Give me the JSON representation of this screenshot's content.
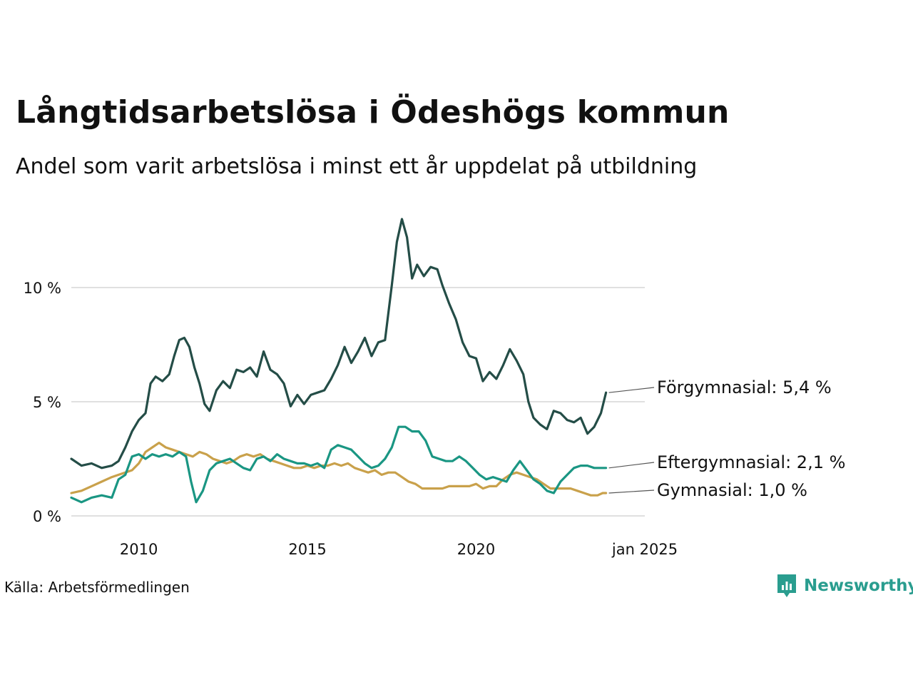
{
  "title": "Långtidsarbetslösa i Ödeshögs kommun",
  "subtitle": "Andel som varit arbetslösa i minst ett år uppdelat på utbildning",
  "source": "Källa: Arbetsförmedlingen",
  "brand": "Newsworthy",
  "colors": {
    "forgym": "#244d47",
    "eftergym": "#1a9683",
    "gym": "#c9a14b",
    "grid": "#e0e0e0",
    "brand": "#2a9d8f"
  },
  "chart_data": {
    "type": "line",
    "title": "Långtidsarbetslösa i Ödeshögs kommun",
    "subtitle": "Andel som varit arbetslösa i minst ett år uppdelat på utbildning",
    "xlabel": "",
    "ylabel": "",
    "xlim": [
      2008.0,
      2025.0
    ],
    "ylim": [
      0,
      13.5
    ],
    "grid": true,
    "x_ticks": [
      {
        "value": 2010,
        "label": "2010"
      },
      {
        "value": 2015,
        "label": "2015"
      },
      {
        "value": 2020,
        "label": "2020"
      },
      {
        "value": 2025,
        "label": "jan 2025"
      }
    ],
    "y_ticks": [
      {
        "value": 0,
        "label": "0 %"
      },
      {
        "value": 5,
        "label": "5 %"
      },
      {
        "value": 10,
        "label": "10 %"
      }
    ],
    "series": [
      {
        "name": "Förgymnasial",
        "key": "forgym",
        "end_label": "Förgymnasial: 5,4 %",
        "points": [
          [
            2008.0,
            2.5
          ],
          [
            2008.3,
            2.2
          ],
          [
            2008.6,
            2.3
          ],
          [
            2008.9,
            2.1
          ],
          [
            2009.2,
            2.2
          ],
          [
            2009.4,
            2.4
          ],
          [
            2009.6,
            3.0
          ],
          [
            2009.8,
            3.7
          ],
          [
            2010.0,
            4.2
          ],
          [
            2010.2,
            4.5
          ],
          [
            2010.35,
            5.8
          ],
          [
            2010.5,
            6.1
          ],
          [
            2010.7,
            5.9
          ],
          [
            2010.9,
            6.2
          ],
          [
            2011.05,
            7.0
          ],
          [
            2011.2,
            7.7
          ],
          [
            2011.35,
            7.8
          ],
          [
            2011.5,
            7.4
          ],
          [
            2011.65,
            6.5
          ],
          [
            2011.8,
            5.8
          ],
          [
            2011.95,
            4.9
          ],
          [
            2012.1,
            4.6
          ],
          [
            2012.3,
            5.5
          ],
          [
            2012.5,
            5.9
          ],
          [
            2012.7,
            5.6
          ],
          [
            2012.9,
            6.4
          ],
          [
            2013.1,
            6.3
          ],
          [
            2013.3,
            6.5
          ],
          [
            2013.5,
            6.1
          ],
          [
            2013.7,
            7.2
          ],
          [
            2013.9,
            6.4
          ],
          [
            2014.1,
            6.2
          ],
          [
            2014.3,
            5.8
          ],
          [
            2014.5,
            4.8
          ],
          [
            2014.7,
            5.3
          ],
          [
            2014.9,
            4.9
          ],
          [
            2015.1,
            5.3
          ],
          [
            2015.3,
            5.4
          ],
          [
            2015.5,
            5.5
          ],
          [
            2015.7,
            6.0
          ],
          [
            2015.9,
            6.6
          ],
          [
            2016.1,
            7.4
          ],
          [
            2016.3,
            6.7
          ],
          [
            2016.5,
            7.2
          ],
          [
            2016.7,
            7.8
          ],
          [
            2016.9,
            7.0
          ],
          [
            2017.1,
            7.6
          ],
          [
            2017.3,
            7.7
          ],
          [
            2017.5,
            10.1
          ],
          [
            2017.65,
            12.0
          ],
          [
            2017.8,
            13.0
          ],
          [
            2017.95,
            12.2
          ],
          [
            2018.1,
            10.4
          ],
          [
            2018.25,
            11.0
          ],
          [
            2018.45,
            10.5
          ],
          [
            2018.65,
            10.9
          ],
          [
            2018.85,
            10.8
          ],
          [
            2019.0,
            10.1
          ],
          [
            2019.2,
            9.3
          ],
          [
            2019.4,
            8.6
          ],
          [
            2019.6,
            7.6
          ],
          [
            2019.8,
            7.0
          ],
          [
            2020.0,
            6.9
          ],
          [
            2020.2,
            5.9
          ],
          [
            2020.4,
            6.3
          ],
          [
            2020.6,
            6.0
          ],
          [
            2020.8,
            6.6
          ],
          [
            2021.0,
            7.3
          ],
          [
            2021.2,
            6.8
          ],
          [
            2021.4,
            6.2
          ],
          [
            2021.55,
            5.0
          ],
          [
            2021.7,
            4.3
          ],
          [
            2021.9,
            4.0
          ],
          [
            2022.1,
            3.8
          ],
          [
            2022.3,
            4.6
          ],
          [
            2022.5,
            4.5
          ],
          [
            2022.7,
            4.2
          ],
          [
            2022.9,
            4.1
          ],
          [
            2023.1,
            4.3
          ],
          [
            2023.3,
            3.6
          ],
          [
            2023.5,
            3.9
          ],
          [
            2023.7,
            4.5
          ],
          [
            2023.85,
            5.4
          ]
        ]
      },
      {
        "name": "Eftergymnasial",
        "key": "eftergym",
        "end_label": "Eftergymnasial: 2,1 %",
        "points": [
          [
            2008.0,
            0.8
          ],
          [
            2008.3,
            0.6
          ],
          [
            2008.6,
            0.8
          ],
          [
            2008.9,
            0.9
          ],
          [
            2009.2,
            0.8
          ],
          [
            2009.4,
            1.6
          ],
          [
            2009.6,
            1.8
          ],
          [
            2009.8,
            2.6
          ],
          [
            2010.0,
            2.7
          ],
          [
            2010.2,
            2.5
          ],
          [
            2010.4,
            2.7
          ],
          [
            2010.6,
            2.6
          ],
          [
            2010.8,
            2.7
          ],
          [
            2011.0,
            2.6
          ],
          [
            2011.2,
            2.8
          ],
          [
            2011.4,
            2.6
          ],
          [
            2011.55,
            1.5
          ],
          [
            2011.7,
            0.6
          ],
          [
            2011.9,
            1.1
          ],
          [
            2012.1,
            2.0
          ],
          [
            2012.3,
            2.3
          ],
          [
            2012.5,
            2.4
          ],
          [
            2012.7,
            2.5
          ],
          [
            2012.9,
            2.3
          ],
          [
            2013.1,
            2.1
          ],
          [
            2013.3,
            2.0
          ],
          [
            2013.5,
            2.5
          ],
          [
            2013.7,
            2.6
          ],
          [
            2013.9,
            2.4
          ],
          [
            2014.1,
            2.7
          ],
          [
            2014.3,
            2.5
          ],
          [
            2014.5,
            2.4
          ],
          [
            2014.7,
            2.3
          ],
          [
            2014.9,
            2.3
          ],
          [
            2015.1,
            2.2
          ],
          [
            2015.3,
            2.3
          ],
          [
            2015.5,
            2.1
          ],
          [
            2015.7,
            2.9
          ],
          [
            2015.9,
            3.1
          ],
          [
            2016.1,
            3.0
          ],
          [
            2016.3,
            2.9
          ],
          [
            2016.5,
            2.6
          ],
          [
            2016.7,
            2.3
          ],
          [
            2016.9,
            2.1
          ],
          [
            2017.1,
            2.2
          ],
          [
            2017.3,
            2.5
          ],
          [
            2017.5,
            3.0
          ],
          [
            2017.7,
            3.9
          ],
          [
            2017.9,
            3.9
          ],
          [
            2018.1,
            3.7
          ],
          [
            2018.3,
            3.7
          ],
          [
            2018.5,
            3.3
          ],
          [
            2018.7,
            2.6
          ],
          [
            2018.9,
            2.5
          ],
          [
            2019.1,
            2.4
          ],
          [
            2019.3,
            2.4
          ],
          [
            2019.5,
            2.6
          ],
          [
            2019.7,
            2.4
          ],
          [
            2019.9,
            2.1
          ],
          [
            2020.1,
            1.8
          ],
          [
            2020.3,
            1.6
          ],
          [
            2020.5,
            1.7
          ],
          [
            2020.7,
            1.6
          ],
          [
            2020.9,
            1.5
          ],
          [
            2021.1,
            2.0
          ],
          [
            2021.3,
            2.4
          ],
          [
            2021.5,
            2.0
          ],
          [
            2021.7,
            1.6
          ],
          [
            2021.9,
            1.4
          ],
          [
            2022.1,
            1.1
          ],
          [
            2022.3,
            1.0
          ],
          [
            2022.5,
            1.5
          ],
          [
            2022.7,
            1.8
          ],
          [
            2022.9,
            2.1
          ],
          [
            2023.1,
            2.2
          ],
          [
            2023.3,
            2.2
          ],
          [
            2023.5,
            2.1
          ],
          [
            2023.7,
            2.1
          ],
          [
            2023.85,
            2.1
          ]
        ]
      },
      {
        "name": "Gymnasial",
        "key": "gym",
        "end_label": "Gymnasial: 1,0 %",
        "points": [
          [
            2008.0,
            1.0
          ],
          [
            2008.3,
            1.1
          ],
          [
            2008.6,
            1.3
          ],
          [
            2008.9,
            1.5
          ],
          [
            2009.2,
            1.7
          ],
          [
            2009.4,
            1.8
          ],
          [
            2009.6,
            1.9
          ],
          [
            2009.8,
            2.0
          ],
          [
            2010.0,
            2.3
          ],
          [
            2010.2,
            2.8
          ],
          [
            2010.4,
            3.0
          ],
          [
            2010.6,
            3.2
          ],
          [
            2010.8,
            3.0
          ],
          [
            2011.0,
            2.9
          ],
          [
            2011.2,
            2.8
          ],
          [
            2011.4,
            2.7
          ],
          [
            2011.6,
            2.6
          ],
          [
            2011.8,
            2.8
          ],
          [
            2012.0,
            2.7
          ],
          [
            2012.2,
            2.5
          ],
          [
            2012.4,
            2.4
          ],
          [
            2012.6,
            2.3
          ],
          [
            2012.8,
            2.4
          ],
          [
            2013.0,
            2.6
          ],
          [
            2013.2,
            2.7
          ],
          [
            2013.4,
            2.6
          ],
          [
            2013.6,
            2.7
          ],
          [
            2013.8,
            2.5
          ],
          [
            2014.0,
            2.4
          ],
          [
            2014.2,
            2.3
          ],
          [
            2014.4,
            2.2
          ],
          [
            2014.6,
            2.1
          ],
          [
            2014.8,
            2.1
          ],
          [
            2015.0,
            2.2
          ],
          [
            2015.2,
            2.1
          ],
          [
            2015.4,
            2.2
          ],
          [
            2015.6,
            2.2
          ],
          [
            2015.8,
            2.3
          ],
          [
            2016.0,
            2.2
          ],
          [
            2016.2,
            2.3
          ],
          [
            2016.4,
            2.1
          ],
          [
            2016.6,
            2.0
          ],
          [
            2016.8,
            1.9
          ],
          [
            2017.0,
            2.0
          ],
          [
            2017.2,
            1.8
          ],
          [
            2017.4,
            1.9
          ],
          [
            2017.6,
            1.9
          ],
          [
            2017.8,
            1.7
          ],
          [
            2018.0,
            1.5
          ],
          [
            2018.2,
            1.4
          ],
          [
            2018.4,
            1.2
          ],
          [
            2018.6,
            1.2
          ],
          [
            2018.8,
            1.2
          ],
          [
            2019.0,
            1.2
          ],
          [
            2019.2,
            1.3
          ],
          [
            2019.4,
            1.3
          ],
          [
            2019.6,
            1.3
          ],
          [
            2019.8,
            1.3
          ],
          [
            2020.0,
            1.4
          ],
          [
            2020.2,
            1.2
          ],
          [
            2020.4,
            1.3
          ],
          [
            2020.6,
            1.3
          ],
          [
            2020.8,
            1.6
          ],
          [
            2021.0,
            1.8
          ],
          [
            2021.2,
            1.9
          ],
          [
            2021.4,
            1.8
          ],
          [
            2021.6,
            1.7
          ],
          [
            2021.8,
            1.6
          ],
          [
            2022.0,
            1.4
          ],
          [
            2022.2,
            1.2
          ],
          [
            2022.4,
            1.2
          ],
          [
            2022.6,
            1.2
          ],
          [
            2022.8,
            1.2
          ],
          [
            2023.0,
            1.1
          ],
          [
            2023.2,
            1.0
          ],
          [
            2023.4,
            0.9
          ],
          [
            2023.6,
            0.9
          ],
          [
            2023.75,
            1.0
          ],
          [
            2023.85,
            1.0
          ]
        ]
      }
    ]
  }
}
